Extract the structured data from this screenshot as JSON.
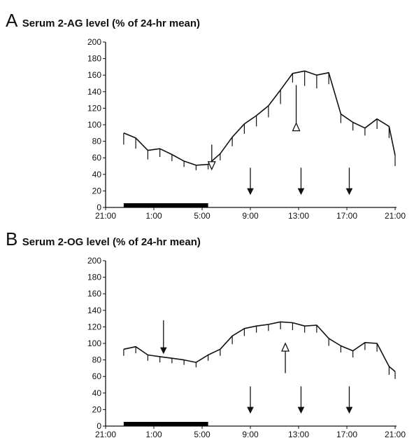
{
  "chart_data": [
    {
      "panel": "A",
      "type": "line",
      "title": "Serum 2-AG level (% of 24-hr mean)",
      "xlabel": "",
      "ylabel": "",
      "xlim": [
        21,
        45
      ],
      "ylim": [
        0,
        200
      ],
      "y_ticks": [
        0,
        20,
        40,
        60,
        80,
        100,
        120,
        140,
        160,
        180,
        200
      ],
      "x_ticks": [
        {
          "t": 21,
          "label": "21:00"
        },
        {
          "t": 25,
          "label": "1:00"
        },
        {
          "t": 29,
          "label": "5:00"
        },
        {
          "t": 33,
          "label": "9:00"
        },
        {
          "t": 37,
          "label": "13:00"
        },
        {
          "t": 41,
          "label": "17:00"
        },
        {
          "t": 45,
          "label": "21:00"
        }
      ],
      "x": [
        22.5,
        23.5,
        24.5,
        25.5,
        26.5,
        27.5,
        28.5,
        29.5,
        30.5,
        31.5,
        32.5,
        33.5,
        34.5,
        35.5,
        36.5,
        37.5,
        38.5,
        39.5,
        40.5,
        41.5,
        42.5,
        43.5,
        44.5
      ],
      "mean": [
        90,
        84,
        69,
        71,
        64,
        56,
        51,
        52,
        65,
        85,
        101,
        111,
        123,
        142,
        162,
        165,
        160,
        163,
        113,
        103,
        96,
        107,
        98
      ],
      "err": [
        14,
        13,
        11,
        10,
        8,
        7,
        6,
        6,
        8,
        11,
        12,
        13,
        14,
        17,
        11,
        18,
        16,
        14,
        11,
        10,
        9,
        12,
        14
      ],
      "last_point": {
        "x": 45,
        "mean": 63,
        "err": 13
      },
      "arrows": [
        {
          "t": 29.8,
          "y_top": 76,
          "y_tip": 46,
          "style": "open",
          "dir": "down"
        },
        {
          "t": 36.8,
          "y_top": 148,
          "y_tip": 102,
          "style": "open",
          "dir": "up"
        },
        {
          "t": 33.0,
          "y_top": 48,
          "y_tip": 16,
          "style": "solid",
          "dir": "down"
        },
        {
          "t": 37.2,
          "y_top": 48,
          "y_tip": 16,
          "style": "solid",
          "dir": "down"
        },
        {
          "t": 41.2,
          "y_top": 48,
          "y_tip": 16,
          "style": "solid",
          "dir": "down"
        }
      ],
      "sleep_bar": {
        "start": 22.5,
        "end": 29.5
      }
    },
    {
      "panel": "B",
      "type": "line",
      "title": "Serum 2-OG level (% of 24-hr mean)",
      "xlabel": "",
      "ylabel": "",
      "xlim": [
        21,
        45
      ],
      "ylim": [
        0,
        200
      ],
      "y_ticks": [
        0,
        20,
        40,
        60,
        80,
        100,
        120,
        140,
        160,
        180,
        200
      ],
      "x_ticks": [
        {
          "t": 21,
          "label": "21:00"
        },
        {
          "t": 25,
          "label": "1:00"
        },
        {
          "t": 29,
          "label": "5:00"
        },
        {
          "t": 33,
          "label": "9:00"
        },
        {
          "t": 37,
          "label": "13:00"
        },
        {
          "t": 41,
          "label": "17:00"
        },
        {
          "t": 45,
          "label": "21:00"
        }
      ],
      "x": [
        22.5,
        23.5,
        24.5,
        25.5,
        26.5,
        27.5,
        28.5,
        29.5,
        30.5,
        31.5,
        32.5,
        33.5,
        34.5,
        35.5,
        36.5,
        37.5,
        38.5,
        39.5,
        40.5,
        41.5,
        42.5,
        43.5,
        44.5
      ],
      "mean": [
        93,
        96,
        86,
        84,
        82,
        80,
        77,
        86,
        93,
        109,
        118,
        121,
        123,
        126,
        125,
        121,
        122,
        106,
        97,
        91,
        101,
        100,
        72
      ],
      "err": [
        8,
        8,
        7,
        7,
        6,
        6,
        6,
        7,
        8,
        10,
        9,
        8,
        8,
        9,
        9,
        8,
        9,
        9,
        8,
        8,
        9,
        10,
        10
      ],
      "last_point": {
        "x": 45,
        "mean": 66,
        "err": 9
      },
      "arrows": [
        {
          "t": 25.8,
          "y_top": 128,
          "y_tip": 88,
          "style": "solid",
          "dir": "down"
        },
        {
          "t": 35.9,
          "y_top": 64,
          "y_tip": 100,
          "style": "open",
          "dir": "up"
        },
        {
          "t": 33.0,
          "y_top": 48,
          "y_tip": 16,
          "style": "solid",
          "dir": "down"
        },
        {
          "t": 37.2,
          "y_top": 48,
          "y_tip": 16,
          "style": "solid",
          "dir": "down"
        },
        {
          "t": 41.2,
          "y_top": 48,
          "y_tip": 16,
          "style": "solid",
          "dir": "down"
        }
      ],
      "sleep_bar": {
        "start": 22.5,
        "end": 29.5
      }
    }
  ],
  "colors": {
    "line": "#111111",
    "axis": "#111111",
    "sleep_bar": "#000000"
  }
}
